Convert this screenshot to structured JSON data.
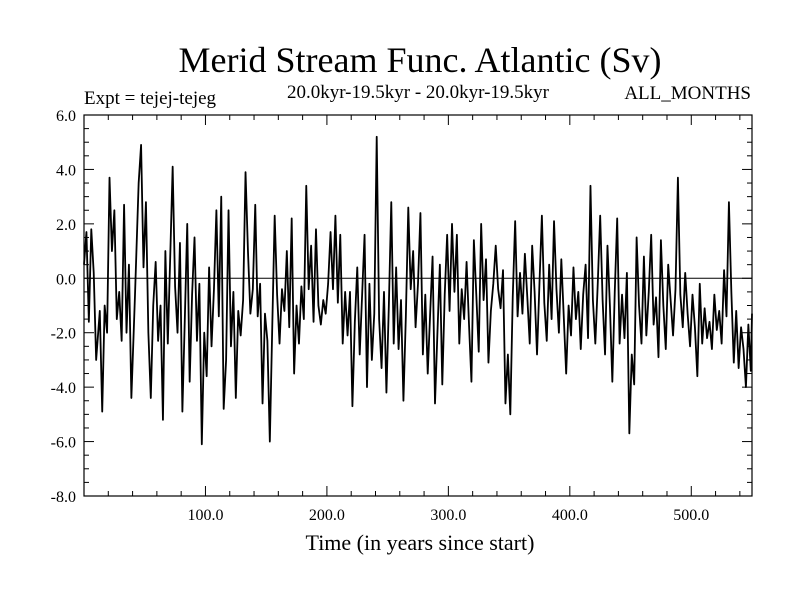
{
  "chart_data": {
    "type": "line",
    "title": "Merid Stream Func. Atlantic (Sv)",
    "subtitle": "20.0kyr-19.5kyr - 20.0kyr-19.5kyr",
    "experiment_label": "Expt = tejej-tejeg",
    "season_label": "ALL_MONTHS",
    "xlabel": "Time (in years since start)",
    "ylabel": "",
    "xlim": [
      0,
      550
    ],
    "ylim": [
      -8,
      6
    ],
    "x_ticks": [
      100,
      200,
      300,
      400,
      500
    ],
    "x_tick_labels": [
      "100.0",
      "200.0",
      "300.0",
      "400.0",
      "500.0"
    ],
    "y_ticks": [
      -8,
      -6,
      -4,
      -2,
      0,
      2,
      4,
      6
    ],
    "y_tick_labels": [
      "-8.0",
      "-6.0",
      "-4.0",
      "-2.0",
      "0.0",
      "2.0",
      "4.0",
      "6.0"
    ],
    "zero_line": true,
    "grid": false,
    "line_color": "#000000",
    "series": [
      {
        "keypoints": [
          [
            0,
            0.5
          ],
          [
            2,
            1.7
          ],
          [
            4,
            -1.6
          ],
          [
            6,
            1.8
          ],
          [
            8,
            0.2
          ],
          [
            10,
            -3.0
          ],
          [
            13,
            -1.2
          ],
          [
            15,
            -4.9
          ],
          [
            17,
            -1.0
          ],
          [
            19,
            -2.0
          ],
          [
            21,
            3.7
          ],
          [
            23,
            1.0
          ],
          [
            25,
            2.5
          ],
          [
            27,
            -1.5
          ],
          [
            29,
            -0.5
          ],
          [
            31,
            -2.3
          ],
          [
            33,
            2.7
          ],
          [
            35,
            -2.0
          ],
          [
            37,
            0.5
          ],
          [
            39,
            -4.4
          ],
          [
            42,
            -0.6
          ],
          [
            45,
            3.5
          ],
          [
            47,
            4.9
          ],
          [
            49,
            0.4
          ],
          [
            51,
            2.8
          ],
          [
            53,
            -2.0
          ],
          [
            55,
            -4.4
          ],
          [
            57,
            -1.0
          ],
          [
            59,
            0.6
          ],
          [
            61,
            -2.3
          ],
          [
            63,
            -1.0
          ],
          [
            65,
            -5.2
          ],
          [
            67,
            1.0
          ],
          [
            69,
            -2.4
          ],
          [
            71,
            0.8
          ],
          [
            73,
            4.1
          ],
          [
            75,
            -0.3
          ],
          [
            77,
            -2.0
          ],
          [
            79,
            1.3
          ],
          [
            81,
            -4.9
          ],
          [
            83,
            -1.5
          ],
          [
            85,
            2.0
          ],
          [
            87,
            -3.8
          ],
          [
            89,
            -0.6
          ],
          [
            91,
            1.5
          ],
          [
            93,
            -2.3
          ],
          [
            95,
            -0.2
          ],
          [
            97,
            -6.1
          ],
          [
            99,
            -2.0
          ],
          [
            101,
            -3.6
          ],
          [
            103,
            0.4
          ],
          [
            105,
            -2.5
          ],
          [
            107,
            -0.4
          ],
          [
            109,
            2.5
          ],
          [
            111,
            -1.4
          ],
          [
            113,
            3.0
          ],
          [
            115,
            -4.8
          ],
          [
            117,
            -3.0
          ],
          [
            119,
            2.5
          ],
          [
            121,
            -2.5
          ],
          [
            123,
            -0.5
          ],
          [
            125,
            -4.4
          ],
          [
            127,
            -1.2
          ],
          [
            129,
            -2.1
          ],
          [
            131,
            -0.8
          ],
          [
            133,
            3.9
          ],
          [
            135,
            1.0
          ],
          [
            137,
            -1.3
          ],
          [
            139,
            -0.4
          ],
          [
            141,
            2.7
          ],
          [
            143,
            -1.4
          ],
          [
            145,
            -0.2
          ],
          [
            147,
            -4.6
          ],
          [
            149,
            -1.3
          ],
          [
            151,
            -2.3
          ],
          [
            153,
            -6.0
          ],
          [
            155,
            -1.8
          ],
          [
            157,
            2.3
          ],
          [
            159,
            -0.6
          ],
          [
            161,
            -2.4
          ],
          [
            163,
            -0.4
          ],
          [
            165,
            -1.2
          ],
          [
            167,
            1.0
          ],
          [
            169,
            -1.8
          ],
          [
            171,
            2.2
          ],
          [
            173,
            -3.5
          ],
          [
            175,
            -1.0
          ],
          [
            177,
            -2.4
          ],
          [
            179,
            -0.3
          ],
          [
            181,
            -1.5
          ],
          [
            183,
            3.4
          ],
          [
            185,
            -0.4
          ],
          [
            187,
            1.2
          ],
          [
            189,
            -1.6
          ],
          [
            191,
            1.8
          ],
          [
            193,
            -1.0
          ],
          [
            195,
            -1.7
          ],
          [
            197,
            -0.8
          ],
          [
            199,
            -1.3
          ],
          [
            201,
            -0.2
          ],
          [
            203,
            1.7
          ],
          [
            205,
            -0.4
          ],
          [
            207,
            2.3
          ],
          [
            209,
            -0.9
          ],
          [
            211,
            1.6
          ],
          [
            213,
            -2.4
          ],
          [
            215,
            -0.5
          ],
          [
            217,
            -2.1
          ],
          [
            219,
            -0.5
          ],
          [
            221,
            -4.7
          ],
          [
            223,
            -1.6
          ],
          [
            225,
            0.4
          ],
          [
            227,
            -2.8
          ],
          [
            229,
            -0.6
          ],
          [
            231,
            1.6
          ],
          [
            233,
            -4.0
          ],
          [
            235,
            -0.2
          ],
          [
            237,
            -3.0
          ],
          [
            239,
            -1.3
          ],
          [
            241,
            5.2
          ],
          [
            243,
            -1.5
          ],
          [
            245,
            -3.3
          ],
          [
            247,
            -0.5
          ],
          [
            249,
            -4.2
          ],
          [
            251,
            -1.0
          ],
          [
            253,
            2.8
          ],
          [
            255,
            -2.4
          ],
          [
            257,
            0.4
          ],
          [
            259,
            -2.6
          ],
          [
            261,
            -0.8
          ],
          [
            263,
            -4.5
          ],
          [
            265,
            -1.4
          ],
          [
            267,
            2.6
          ],
          [
            269,
            -0.4
          ],
          [
            271,
            1.0
          ],
          [
            273,
            -1.8
          ],
          [
            275,
            -0.2
          ],
          [
            277,
            2.4
          ],
          [
            279,
            -2.8
          ],
          [
            281,
            -0.6
          ],
          [
            283,
            -3.5
          ],
          [
            285,
            -1.3
          ],
          [
            287,
            0.8
          ],
          [
            289,
            -4.6
          ],
          [
            291,
            -2.0
          ],
          [
            293,
            0.5
          ],
          [
            295,
            -3.9
          ],
          [
            297,
            -0.6
          ],
          [
            299,
            1.6
          ],
          [
            301,
            -1.2
          ],
          [
            303,
            2.0
          ],
          [
            305,
            -0.5
          ],
          [
            307,
            1.6
          ],
          [
            309,
            -2.4
          ],
          [
            311,
            -0.4
          ],
          [
            313,
            -1.5
          ],
          [
            315,
            0.6
          ],
          [
            317,
            -1.7
          ],
          [
            319,
            -3.8
          ],
          [
            321,
            1.4
          ],
          [
            323,
            -0.6
          ],
          [
            325,
            -2.7
          ],
          [
            327,
            2.0
          ],
          [
            329,
            -0.8
          ],
          [
            331,
            0.7
          ],
          [
            333,
            -3.1
          ],
          [
            335,
            -1.2
          ],
          [
            337,
            -0.2
          ],
          [
            339,
            1.2
          ],
          [
            341,
            -0.4
          ],
          [
            343,
            -1.1
          ],
          [
            345,
            0.3
          ],
          [
            347,
            -4.6
          ],
          [
            349,
            -2.8
          ],
          [
            351,
            -5.0
          ],
          [
            353,
            -0.7
          ],
          [
            355,
            2.1
          ],
          [
            357,
            -1.4
          ],
          [
            359,
            0.2
          ],
          [
            361,
            -1.3
          ],
          [
            363,
            0.9
          ],
          [
            365,
            -0.7
          ],
          [
            367,
            -2.4
          ],
          [
            369,
            1.2
          ],
          [
            371,
            -0.5
          ],
          [
            373,
            -2.8
          ],
          [
            375,
            -0.2
          ],
          [
            377,
            2.3
          ],
          [
            379,
            -0.9
          ],
          [
            381,
            -2.3
          ],
          [
            383,
            0.5
          ],
          [
            385,
            -1.5
          ],
          [
            387,
            2.1
          ],
          [
            389,
            -0.4
          ],
          [
            391,
            -2.0
          ],
          [
            393,
            0.7
          ],
          [
            395,
            -1.4
          ],
          [
            397,
            -3.5
          ],
          [
            399,
            -1.0
          ],
          [
            401,
            -2.1
          ],
          [
            403,
            0.4
          ],
          [
            405,
            -1.5
          ],
          [
            407,
            -0.5
          ],
          [
            409,
            -2.6
          ],
          [
            411,
            -0.6
          ],
          [
            413,
            0.5
          ],
          [
            415,
            -2.2
          ],
          [
            417,
            3.4
          ],
          [
            419,
            -0.8
          ],
          [
            421,
            -2.4
          ],
          [
            423,
            -0.2
          ],
          [
            425,
            2.3
          ],
          [
            427,
            -0.8
          ],
          [
            429,
            -2.8
          ],
          [
            431,
            1.2
          ],
          [
            433,
            -1.0
          ],
          [
            435,
            -3.8
          ],
          [
            437,
            -0.5
          ],
          [
            439,
            2.2
          ],
          [
            441,
            -2.4
          ],
          [
            443,
            -0.6
          ],
          [
            445,
            -2.2
          ],
          [
            447,
            0.2
          ],
          [
            449,
            -5.7
          ],
          [
            451,
            -2.8
          ],
          [
            453,
            -3.9
          ],
          [
            455,
            1.5
          ],
          [
            457,
            -1.0
          ],
          [
            459,
            -2.4
          ],
          [
            461,
            0.8
          ],
          [
            463,
            -2.1
          ],
          [
            465,
            -0.5
          ],
          [
            467,
            1.6
          ],
          [
            469,
            -1.7
          ],
          [
            471,
            -0.7
          ],
          [
            473,
            -2.9
          ],
          [
            475,
            1.4
          ],
          [
            477,
            -1.0
          ],
          [
            479,
            -2.6
          ],
          [
            481,
            0.5
          ],
          [
            483,
            -0.8
          ],
          [
            485,
            -2.1
          ],
          [
            487,
            -0.4
          ],
          [
            489,
            3.7
          ],
          [
            491,
            -0.6
          ],
          [
            493,
            -1.8
          ],
          [
            495,
            0.2
          ],
          [
            497,
            -1.3
          ],
          [
            499,
            -2.5
          ],
          [
            501,
            -0.6
          ],
          [
            503,
            -1.8
          ],
          [
            505,
            -3.6
          ],
          [
            507,
            -0.2
          ],
          [
            509,
            -2.4
          ],
          [
            511,
            -1.1
          ],
          [
            513,
            -2.2
          ],
          [
            515,
            -1.6
          ],
          [
            517,
            -2.6
          ],
          [
            519,
            -0.6
          ],
          [
            521,
            -1.9
          ],
          [
            523,
            -1.2
          ],
          [
            525,
            -2.4
          ],
          [
            527,
            0.3
          ],
          [
            529,
            -1.4
          ],
          [
            531,
            2.8
          ],
          [
            533,
            -0.5
          ],
          [
            535,
            -3.1
          ],
          [
            537,
            -1.2
          ],
          [
            539,
            -3.3
          ],
          [
            541,
            -1.8
          ],
          [
            543,
            -2.6
          ],
          [
            545,
            -4.0
          ],
          [
            547,
            -1.7
          ],
          [
            549,
            -3.4
          ],
          [
            550,
            -1.3
          ]
        ]
      }
    ]
  }
}
